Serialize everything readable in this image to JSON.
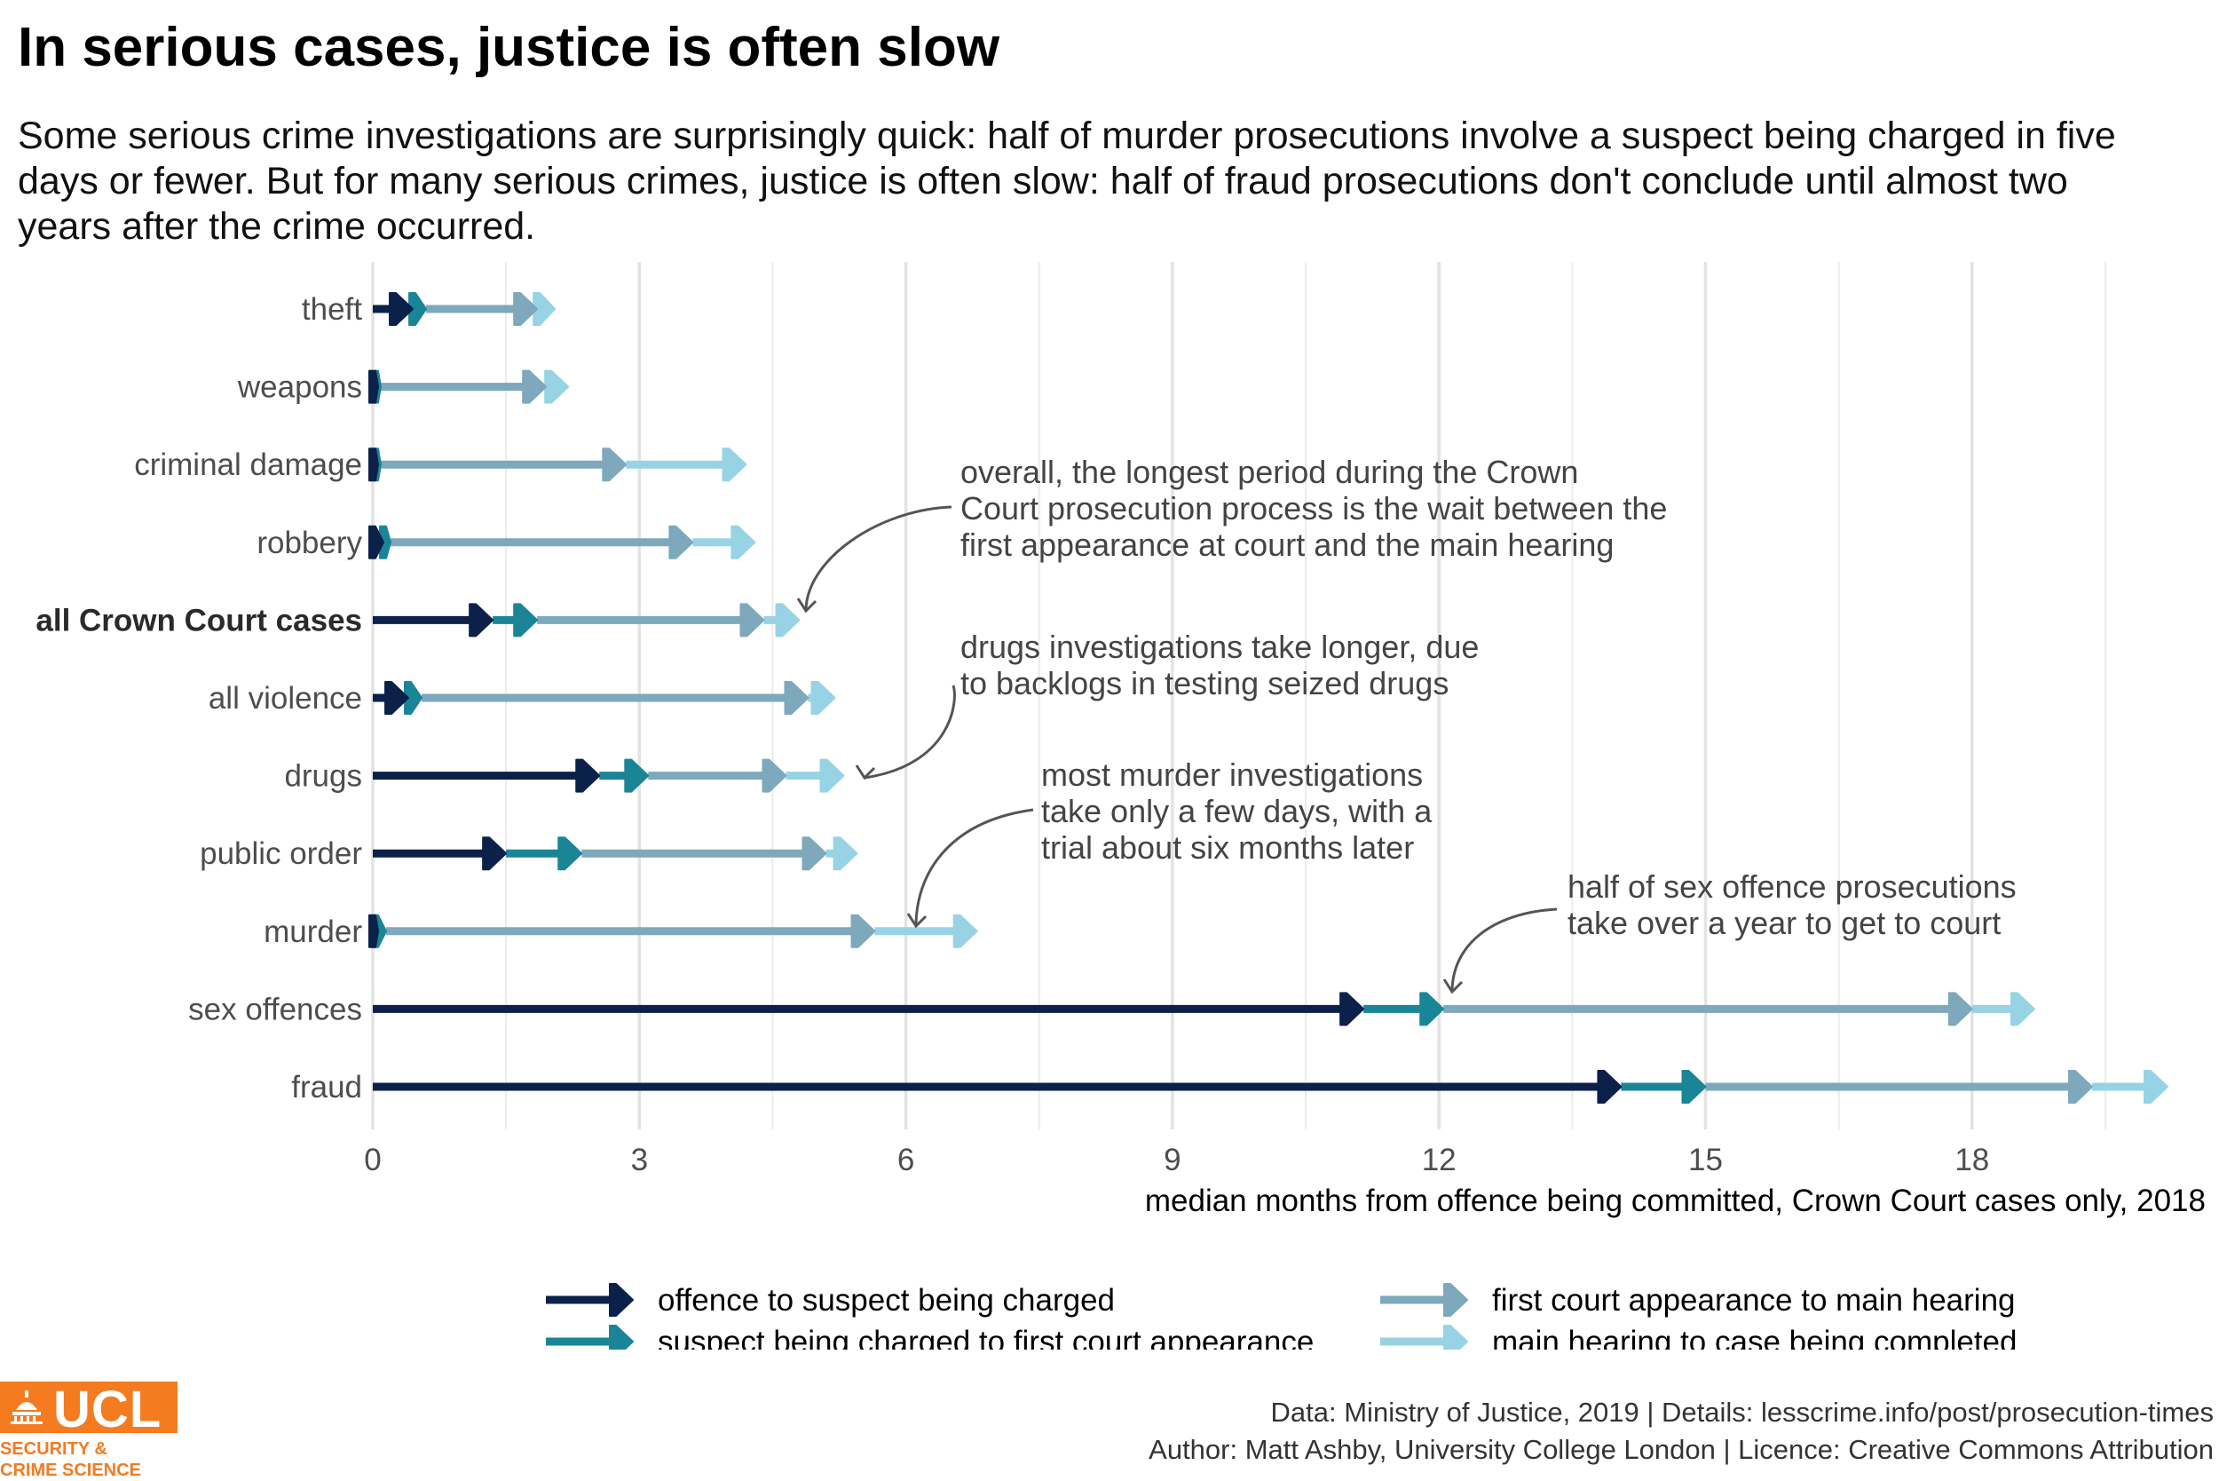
{
  "title": "In serious cases, justice is often slow",
  "subtitle": "Some serious crime investigations are surprisingly quick: half of murder prosecutions involve a suspect being charged in five days or fewer. But for many serious crimes, justice is often slow: half of fraud prosecutions don't conclude until almost two years after the crime occurred.",
  "colors": {
    "offence_to_charge": "#0b2149",
    "charge_to_first_court": "#1a8597",
    "first_court_to_main_hearing": "#7ea8bc",
    "main_hearing_to_completion": "#97d3e4",
    "gridline": "#e5e5e5",
    "logo_orange": "#f47b20"
  },
  "chart_data": {
    "type": "range-bar",
    "xlabel": "median months from offence being committed, Crown Court cases only, 2018",
    "xlim": [
      0,
      20.2
    ],
    "xticks": [
      0,
      3,
      6,
      9,
      12,
      15,
      18
    ],
    "grid": true,
    "legend_position": "bottom",
    "series": [
      {
        "name": "offence to suspect being charged",
        "color": "#0b2149"
      },
      {
        "name": "suspect being charged to first court appearance",
        "color": "#1a8597"
      },
      {
        "name": "first court appearance to main hearing",
        "color": "#7ea8bc"
      },
      {
        "name": "main hearing to case being completed",
        "color": "#97d3e4"
      }
    ],
    "categories": [
      "theft",
      "weapons",
      "criminal damage",
      "robbery",
      "all Crown Court cases",
      "all violence",
      "drugs",
      "public order",
      "murder",
      "sex offences",
      "fraud"
    ],
    "highlight_category": "all Crown Court cases",
    "rows": [
      {
        "category": "theft",
        "charged": 0.45,
        "first_court": 0.6,
        "main_hearing": 1.85,
        "completed": 2.05
      },
      {
        "category": "weapons",
        "charged": 0.03,
        "first_court": 0.05,
        "main_hearing": 1.95,
        "completed": 2.2
      },
      {
        "category": "criminal damage",
        "charged": 0.03,
        "first_court": 0.05,
        "main_hearing": 2.85,
        "completed": 4.2
      },
      {
        "category": "robbery",
        "charged": 0.12,
        "first_court": 0.2,
        "main_hearing": 3.6,
        "completed": 4.3
      },
      {
        "category": "all Crown Court cases",
        "charged": 1.35,
        "first_court": 1.85,
        "main_hearing": 4.4,
        "completed": 4.8
      },
      {
        "category": "all violence",
        "charged": 0.4,
        "first_court": 0.55,
        "main_hearing": 4.9,
        "completed": 5.2
      },
      {
        "category": "drugs",
        "charged": 2.55,
        "first_court": 3.1,
        "main_hearing": 4.65,
        "completed": 5.3
      },
      {
        "category": "public order",
        "charged": 1.5,
        "first_court": 2.35,
        "main_hearing": 5.1,
        "completed": 5.45
      },
      {
        "category": "murder",
        "charged": 0.03,
        "first_court": 0.15,
        "main_hearing": 5.65,
        "completed": 6.8
      },
      {
        "category": "sex offences",
        "charged": 11.15,
        "first_court": 12.05,
        "main_hearing": 18.0,
        "completed": 18.7
      },
      {
        "category": "fraud",
        "charged": 14.05,
        "first_court": 15.0,
        "main_hearing": 19.35,
        "completed": 20.2
      }
    ],
    "annotations": [
      {
        "lines": [
          "overall, the longest period during the Crown",
          "Court prosecution process is the wait between the",
          "first appearance at court and the main hearing"
        ],
        "category": "all Crown Court cases",
        "x": 4.85
      },
      {
        "lines": [
          "drugs investigations take longer, due",
          "to backlogs in testing seized drugs"
        ],
        "category": "drugs",
        "x": 5.45
      },
      {
        "lines": [
          "most murder investigations",
          "take only a few days, with a",
          "trial about six months later"
        ],
        "category": "murder",
        "x": 6.1
      },
      {
        "lines": [
          "half of sex offence prosecutions",
          "take over a year to get to court"
        ],
        "category": "sex offences",
        "x": 12.05
      }
    ]
  },
  "caption": {
    "line1": "Data: Ministry of Justice, 2019 |  Details: lesscrime.info/post/prosecution-times",
    "line2": "Author: Matt Ashby, University College London |  Licence: Creative Commons Attribution"
  },
  "logo": {
    "word": "UCL",
    "sub1": "SECURITY &",
    "sub2": "CRIME SCIENCE"
  }
}
